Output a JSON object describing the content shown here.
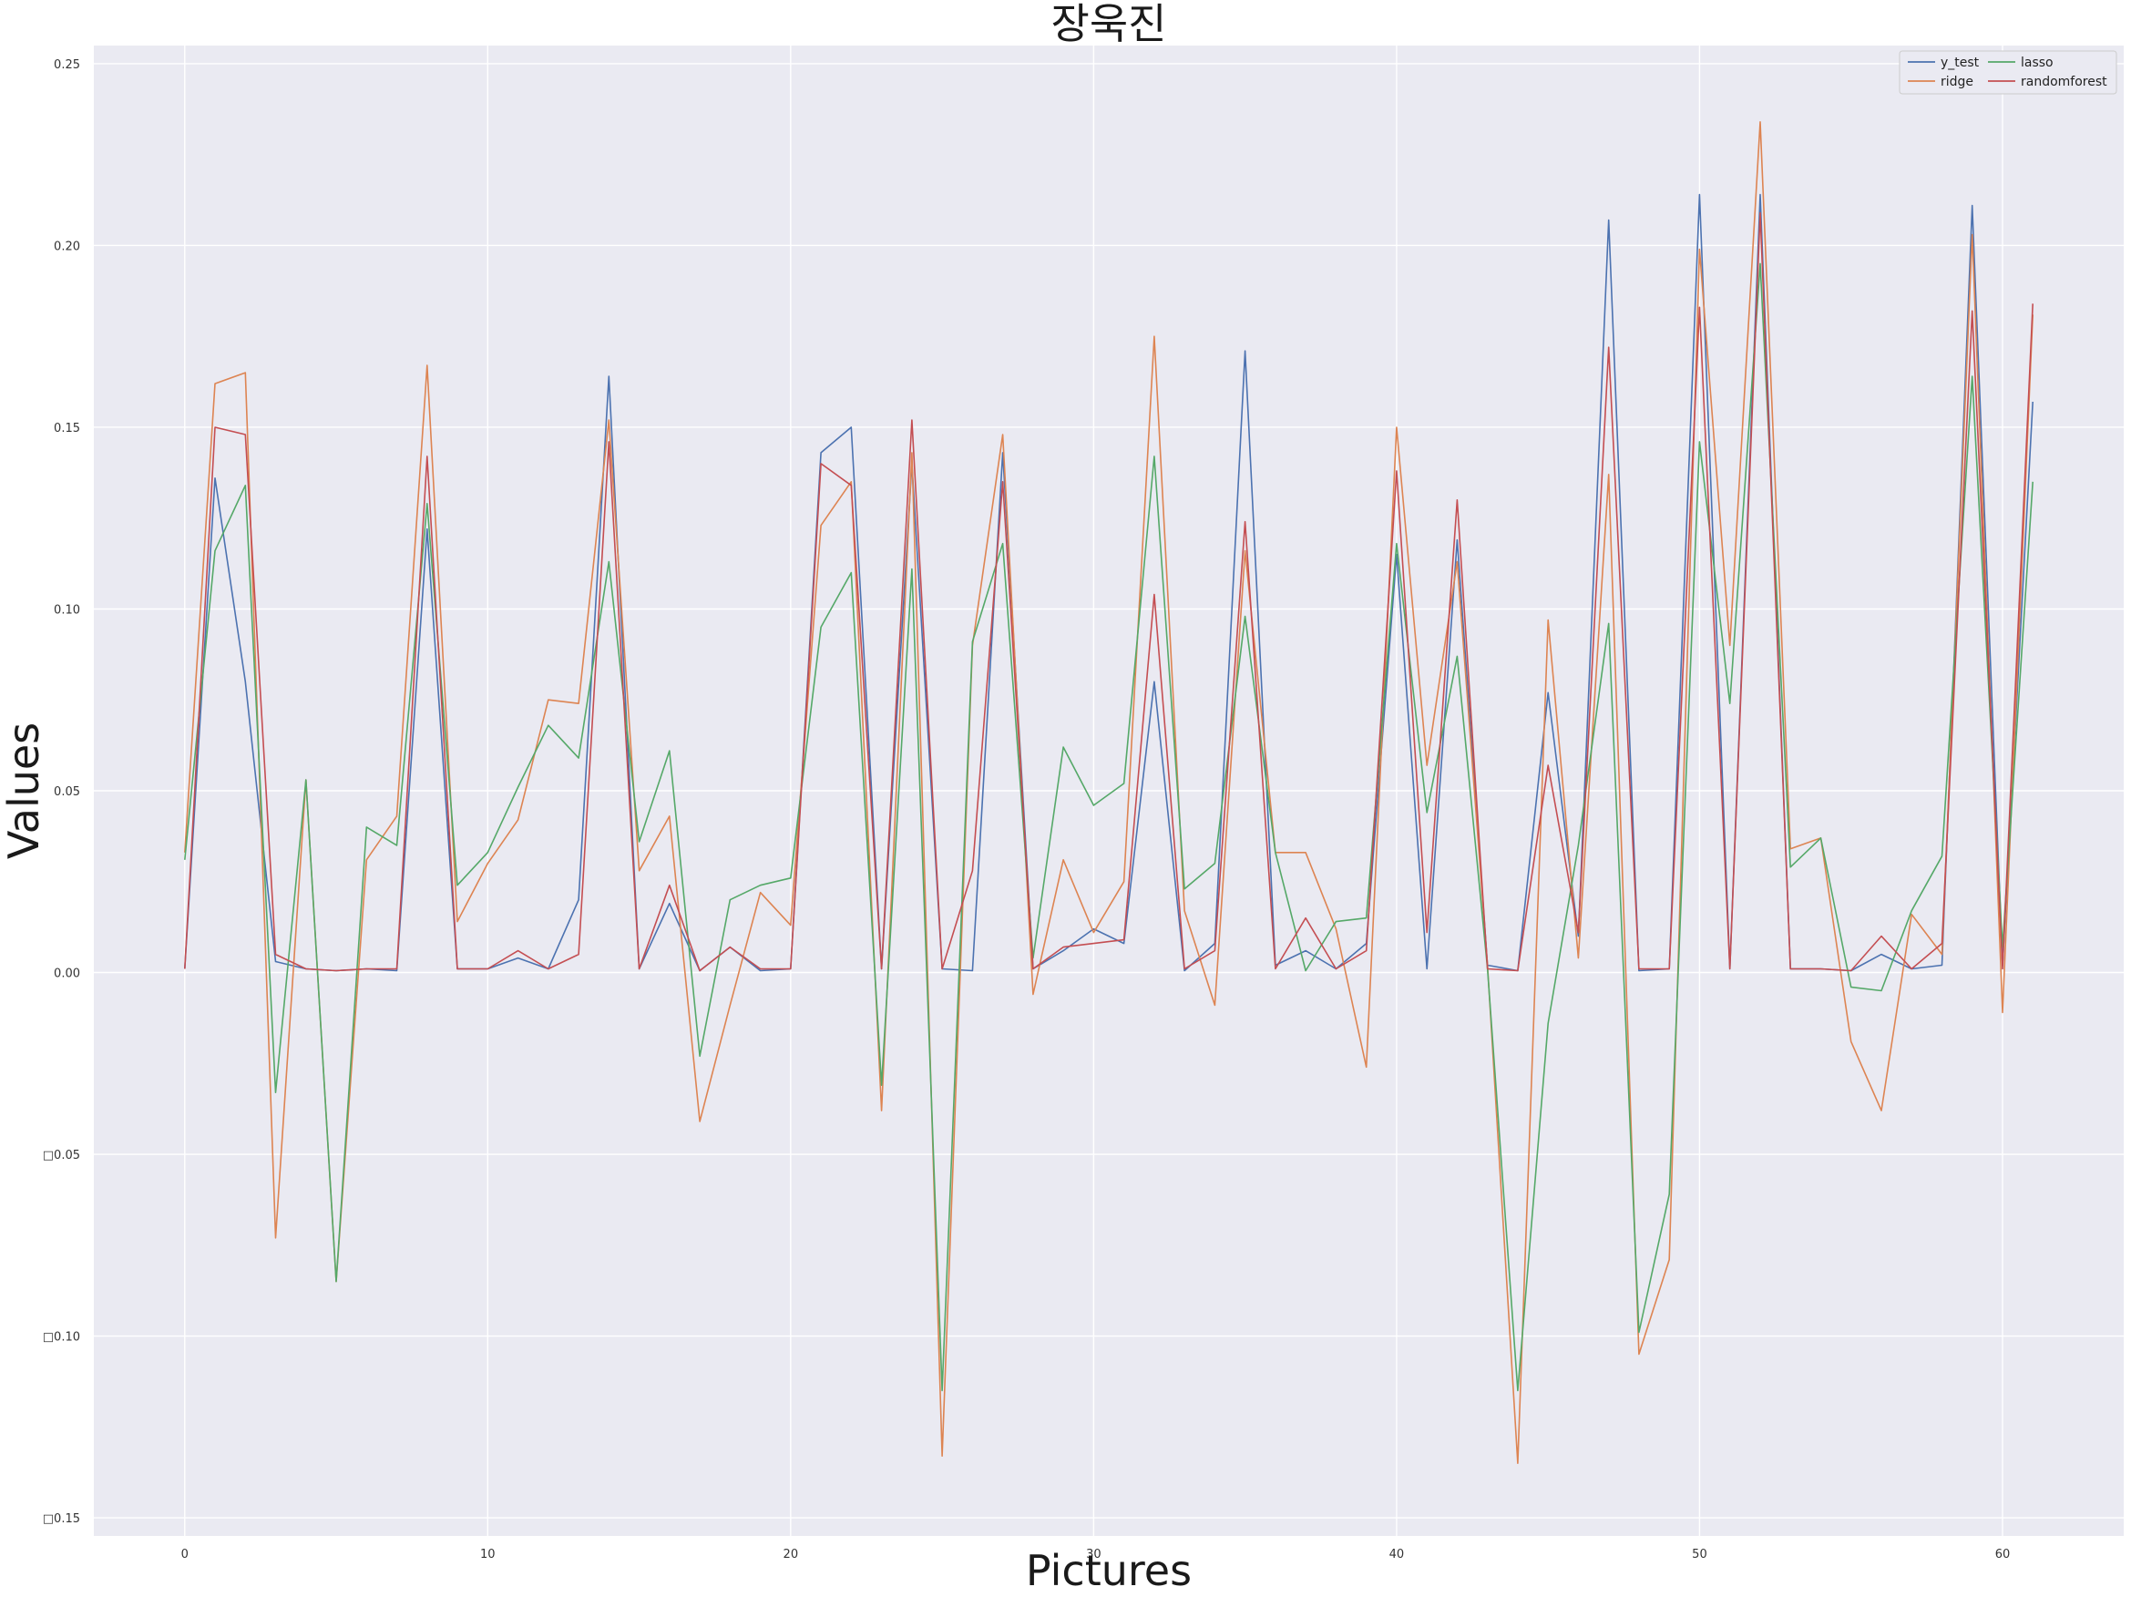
{
  "chart_data": {
    "type": "line",
    "title": "장욱진",
    "xlabel": "Pictures",
    "ylabel": "Values",
    "xlim": [
      -3,
      64
    ],
    "ylim": [
      -0.155,
      0.255
    ],
    "xticks": [
      0,
      10,
      20,
      30,
      40,
      50,
      60
    ],
    "yticks": [
      -0.15,
      -0.1,
      -0.05,
      0.0,
      0.05,
      0.1,
      0.15,
      0.2,
      0.25
    ],
    "ytick_labels": [
      "□0.15",
      "□0.10",
      "□0.05",
      "0.00",
      "0.05",
      "0.10",
      "0.15",
      "0.20",
      "0.25"
    ],
    "grid": true,
    "legend": {
      "placement": "top-right",
      "columns": 2
    },
    "colors": {
      "background": "#eaeaf2",
      "grid": "#ffffff"
    },
    "x": [
      0,
      1,
      2,
      3,
      4,
      5,
      6,
      7,
      8,
      9,
      10,
      11,
      12,
      13,
      14,
      15,
      16,
      17,
      18,
      19,
      20,
      21,
      22,
      23,
      24,
      25,
      26,
      27,
      28,
      29,
      30,
      31,
      32,
      33,
      34,
      35,
      36,
      37,
      38,
      39,
      40,
      41,
      42,
      43,
      44,
      45,
      46,
      47,
      48,
      49,
      50,
      51,
      52,
      53,
      54,
      55,
      56,
      57,
      58,
      59,
      60,
      61
    ],
    "series": [
      {
        "name": "y_test",
        "color": "#4c72b0",
        "values": [
          0.001,
          0.136,
          0.08,
          0.003,
          0.001,
          0.0005,
          0.001,
          0.0005,
          0.122,
          0.001,
          0.001,
          0.004,
          0.001,
          0.02,
          0.164,
          0.001,
          0.019,
          0.0005,
          0.007,
          0.0005,
          0.001,
          0.143,
          0.15,
          0.001,
          0.14,
          0.001,
          0.0005,
          0.143,
          0.001,
          0.006,
          0.012,
          0.008,
          0.08,
          0.0005,
          0.008,
          0.171,
          0.002,
          0.006,
          0.001,
          0.008,
          0.115,
          0.001,
          0.119,
          0.002,
          0.0005,
          0.077,
          0.01,
          0.207,
          0.0005,
          0.001,
          0.214,
          0.001,
          0.214,
          0.001,
          0.001,
          0.0005,
          0.005,
          0.001,
          0.002,
          0.211,
          0.002,
          0.157
        ]
      },
      {
        "name": "ridge",
        "color": "#dd8452",
        "values": [
          0.033,
          0.162,
          0.165,
          -0.073,
          0.053,
          -0.085,
          0.031,
          0.043,
          0.167,
          0.014,
          0.03,
          0.042,
          0.075,
          0.074,
          0.152,
          0.028,
          0.043,
          -0.041,
          -0.009,
          0.022,
          0.013,
          0.123,
          0.135,
          -0.038,
          0.143,
          -0.133,
          0.09,
          0.148,
          -0.006,
          0.031,
          0.011,
          0.025,
          0.175,
          0.017,
          -0.009,
          0.116,
          0.033,
          0.033,
          0.012,
          -0.026,
          0.15,
          0.057,
          0.113,
          0.002,
          -0.135,
          0.097,
          0.004,
          0.137,
          -0.105,
          -0.079,
          0.199,
          0.09,
          0.234,
          0.034,
          0.037,
          -0.019,
          -0.038,
          0.016,
          0.005,
          0.203,
          -0.011,
          0.181
        ]
      },
      {
        "name": "lasso",
        "color": "#55a868",
        "values": [
          0.031,
          0.116,
          0.134,
          -0.033,
          0.053,
          -0.085,
          0.04,
          0.035,
          0.129,
          0.024,
          0.033,
          0.051,
          0.068,
          0.059,
          0.113,
          0.036,
          0.061,
          -0.023,
          0.02,
          0.024,
          0.026,
          0.095,
          0.11,
          -0.031,
          0.111,
          -0.115,
          0.091,
          0.118,
          0.004,
          0.062,
          0.046,
          0.052,
          0.142,
          0.023,
          0.03,
          0.098,
          0.033,
          0.0005,
          0.014,
          0.015,
          0.118,
          0.044,
          0.087,
          0.001,
          -0.115,
          -0.014,
          0.035,
          0.096,
          -0.099,
          -0.061,
          0.146,
          0.074,
          0.195,
          0.029,
          0.037,
          -0.004,
          -0.005,
          0.017,
          0.032,
          0.164,
          0.007,
          0.135
        ]
      },
      {
        "name": "randomforest",
        "color": "#c44e52",
        "values": [
          0.001,
          0.15,
          0.148,
          0.005,
          0.001,
          0.0005,
          0.001,
          0.001,
          0.142,
          0.001,
          0.001,
          0.006,
          0.001,
          0.005,
          0.146,
          0.001,
          0.024,
          0.0005,
          0.007,
          0.001,
          0.001,
          0.14,
          0.134,
          0.001,
          0.152,
          0.001,
          0.028,
          0.135,
          0.001,
          0.007,
          0.008,
          0.009,
          0.104,
          0.001,
          0.006,
          0.124,
          0.001,
          0.015,
          0.001,
          0.006,
          0.138,
          0.011,
          0.13,
          0.001,
          0.0005,
          0.057,
          0.011,
          0.172,
          0.001,
          0.001,
          0.183,
          0.001,
          0.209,
          0.001,
          0.001,
          0.0005,
          0.01,
          0.001,
          0.008,
          0.182,
          0.001,
          0.184
        ]
      }
    ]
  }
}
